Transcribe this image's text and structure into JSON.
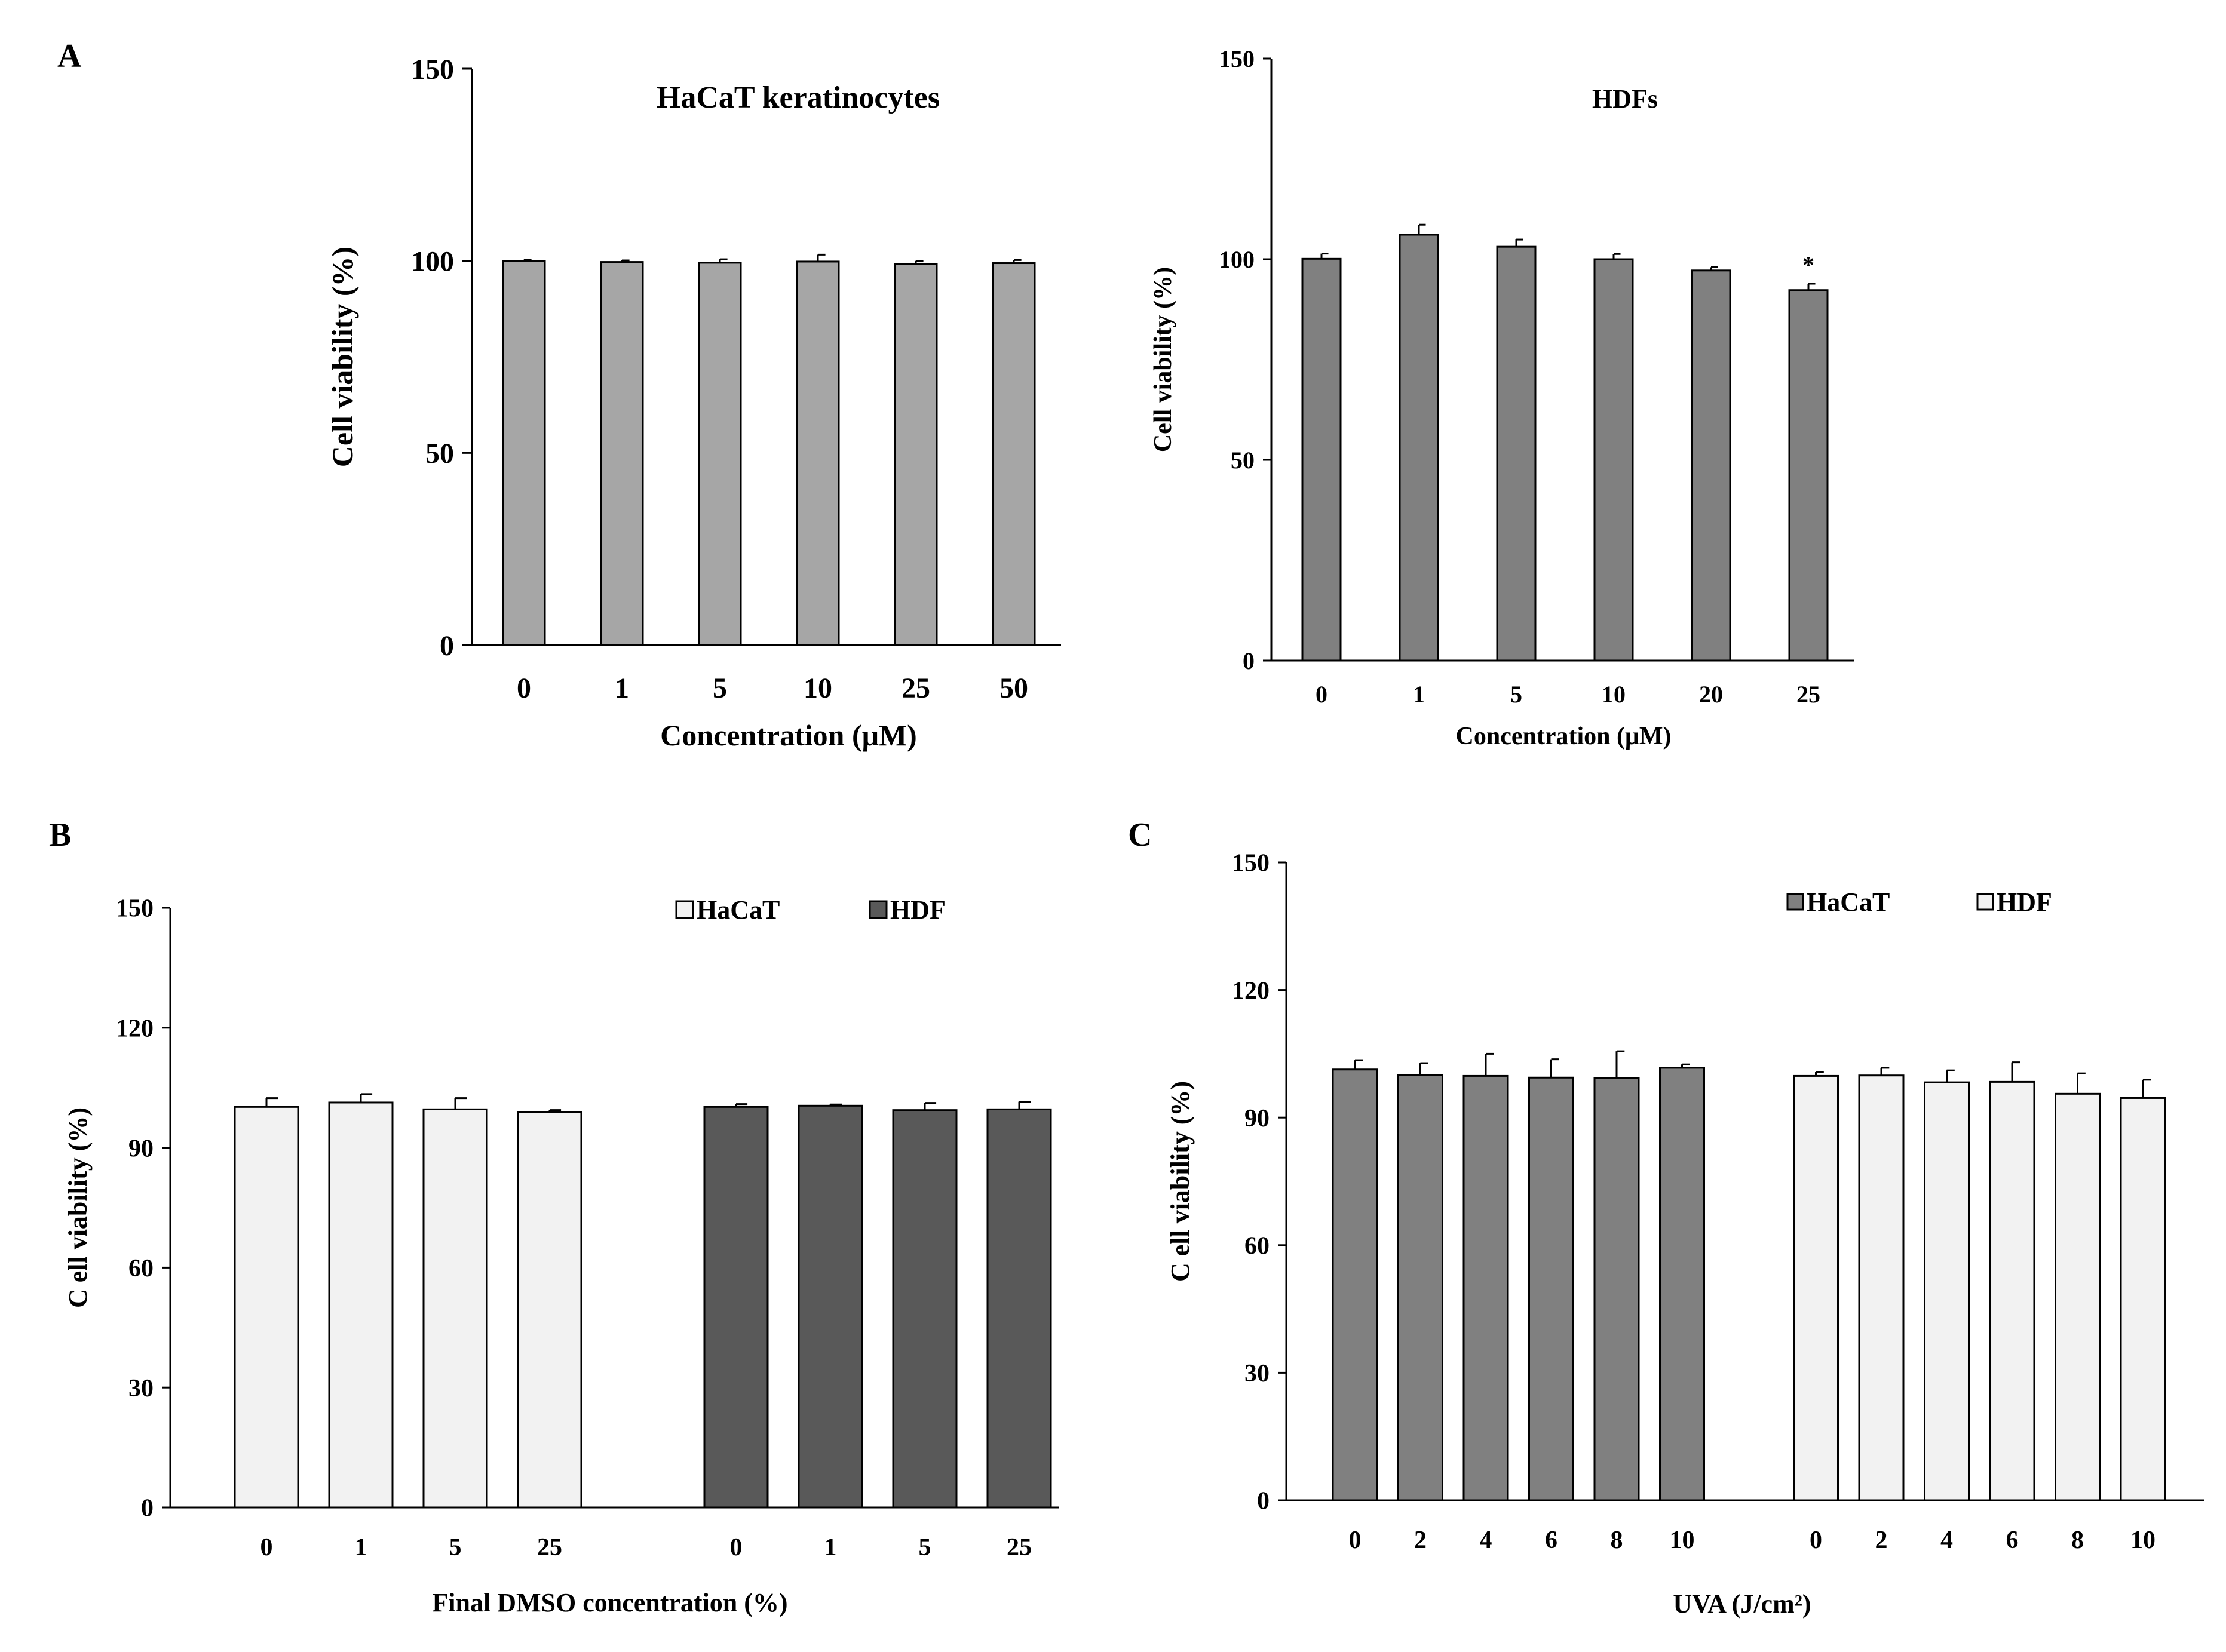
{
  "panel_labels": {
    "a": "A",
    "b": "B",
    "c": "C"
  },
  "chart_data": [
    {
      "id": "A1",
      "type": "bar",
      "title": "HaCaT keratinocytes",
      "xlabel": "Concentration (μM)",
      "ylabel": "Cell viability (%)",
      "ylim": [
        0,
        150
      ],
      "yticks": [
        0,
        50,
        100,
        150
      ],
      "categories": [
        "0",
        "1",
        "5",
        "10",
        "25",
        "50"
      ],
      "series": [
        {
          "name": "HaCaT keratinocytes",
          "color": "#a6a6a6",
          "values": [
            100,
            99.7,
            99.5,
            99.8,
            99.1,
            99.4
          ],
          "errors": [
            0.3,
            0.4,
            0.9,
            1.8,
            0.9,
            0.8
          ]
        }
      ],
      "legend": null,
      "annotations": []
    },
    {
      "id": "A2",
      "type": "bar",
      "title": "HDFs",
      "xlabel": "Concentration (μM)",
      "ylabel": "Cell viability (%)",
      "ylim": [
        0,
        150
      ],
      "yticks": [
        0,
        50,
        100,
        150
      ],
      "categories": [
        "0",
        "1",
        "5",
        "10",
        "20",
        "25"
      ],
      "series": [
        {
          "name": "HDFs",
          "color": "#808080",
          "values": [
            100.1,
            106.1,
            103.1,
            100,
            97.2,
            92.3
          ],
          "errors": [
            1.3,
            2.5,
            1.8,
            1.3,
            0.8,
            1.6
          ]
        }
      ],
      "legend": null,
      "annotations": [
        {
          "category": "25",
          "text": "*"
        }
      ]
    },
    {
      "id": "B",
      "type": "bar",
      "title": "",
      "xlabel": "Final DMSO concentration (%)",
      "ylabel": "C ell viability (%)",
      "ylim": [
        0,
        150
      ],
      "yticks": [
        0,
        30,
        60,
        90,
        120,
        150
      ],
      "categories": [
        "0",
        "1",
        "5",
        "25"
      ],
      "series": [
        {
          "name": "HaCaT",
          "color": "#f2f2f2",
          "values": [
            100.2,
            101.3,
            99.6,
            98.9
          ],
          "errors": [
            2.2,
            2.1,
            2.8,
            0.5
          ]
        },
        {
          "name": "HDF",
          "color": "#595959",
          "values": [
            100.2,
            100.5,
            99.4,
            99.6
          ],
          "errors": [
            0.7,
            0.3,
            1.8,
            1.9
          ]
        }
      ],
      "legend": "top-right",
      "annotations": []
    },
    {
      "id": "C",
      "type": "bar",
      "title": "",
      "xlabel": "UVA (J/cm²)",
      "ylabel": "C ell viability (%)",
      "ylim": [
        0,
        150
      ],
      "yticks": [
        0,
        30,
        60,
        90,
        120,
        150
      ],
      "categories": [
        "0",
        "2",
        "4",
        "6",
        "8",
        "10"
      ],
      "series": [
        {
          "name": "HaCaT",
          "color": "#808080",
          "values": [
            101.3,
            100,
            99.8,
            99.4,
            99.3,
            101.7
          ],
          "errors": [
            2.2,
            2.8,
            5.2,
            4.3,
            6.3,
            0.8
          ]
        },
        {
          "name": "HDF",
          "color": "#f2f2f2",
          "values": [
            99.8,
            99.9,
            98.3,
            98.4,
            95.6,
            94.6
          ],
          "errors": [
            0.9,
            1.8,
            2.8,
            4.6,
            4.8,
            4.3
          ]
        }
      ],
      "legend": "top-right",
      "annotations": []
    }
  ]
}
